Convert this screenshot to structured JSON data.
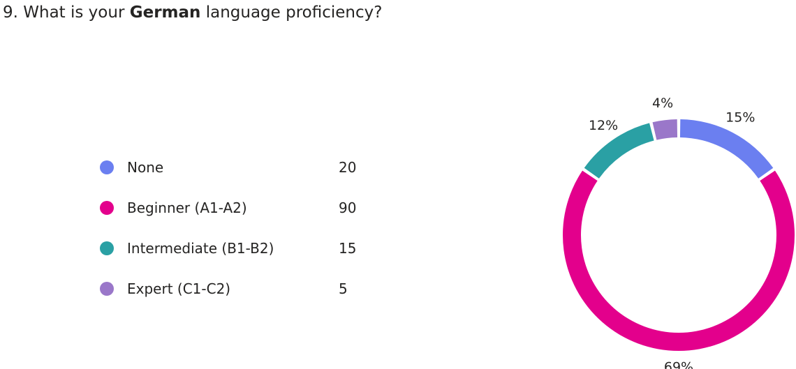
{
  "question": {
    "prefix": "9. What is your ",
    "bold": "German",
    "suffix": " language proficiency?"
  },
  "chart_data": {
    "type": "pie",
    "donut": true,
    "title": "9. What is your German language proficiency?",
    "categories": [
      "None",
      "Beginner (A1-A2)",
      "Intermediate (B1-B2)",
      "Expert (C1-C2)"
    ],
    "values": [
      20,
      90,
      15,
      5
    ],
    "percent_labels": [
      "15%",
      "69%",
      "12%",
      "4%"
    ],
    "colors": [
      "#6b7ff0",
      "#e3008c",
      "#2aa0a4",
      "#9a77c9"
    ],
    "legend_position": "left"
  }
}
